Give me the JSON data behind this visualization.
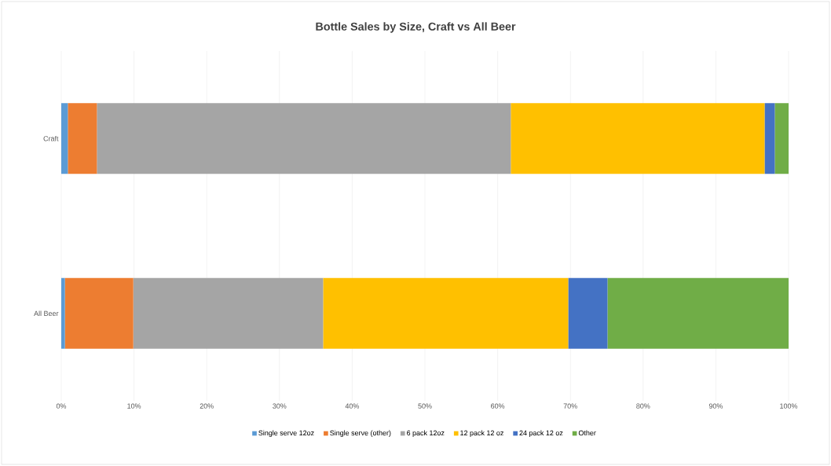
{
  "chart_data": {
    "type": "bar",
    "orientation": "horizontal",
    "stacked": true,
    "title": "Bottle Sales by Size, Craft vs All Beer",
    "categories": [
      "Craft",
      "All Beer"
    ],
    "series": [
      {
        "name": "Single serve 12oz",
        "color": "#5b9bd5",
        "values": [
          0.9,
          0.5
        ]
      },
      {
        "name": "Single serve (other)",
        "color": "#ed7d31",
        "values": [
          4.0,
          9.4
        ]
      },
      {
        "name": "6 pack 12oz",
        "color": "#a5a5a5",
        "values": [
          56.9,
          26.1
        ]
      },
      {
        "name": "12 pack 12 oz",
        "color": "#ffc000",
        "values": [
          34.9,
          33.7
        ]
      },
      {
        "name": "24 pack 12 oz",
        "color": "#4472c4",
        "values": [
          1.4,
          5.4
        ]
      },
      {
        "name": "Other",
        "color": "#70ad47",
        "values": [
          1.9,
          24.9
        ]
      }
    ],
    "xlim": [
      0,
      100
    ],
    "xticks": [
      {
        "value": 0,
        "label": "0%"
      },
      {
        "value": 10,
        "label": "10%"
      },
      {
        "value": 20,
        "label": "20%"
      },
      {
        "value": 30,
        "label": "30%"
      },
      {
        "value": 40,
        "label": "40%"
      },
      {
        "value": 50,
        "label": "50%"
      },
      {
        "value": 60,
        "label": "60%"
      },
      {
        "value": 70,
        "label": "70%"
      },
      {
        "value": 80,
        "label": "80%"
      },
      {
        "value": 90,
        "label": "90%"
      },
      {
        "value": 100,
        "label": "100%"
      }
    ],
    "grid": "x",
    "legend": "bottom"
  }
}
